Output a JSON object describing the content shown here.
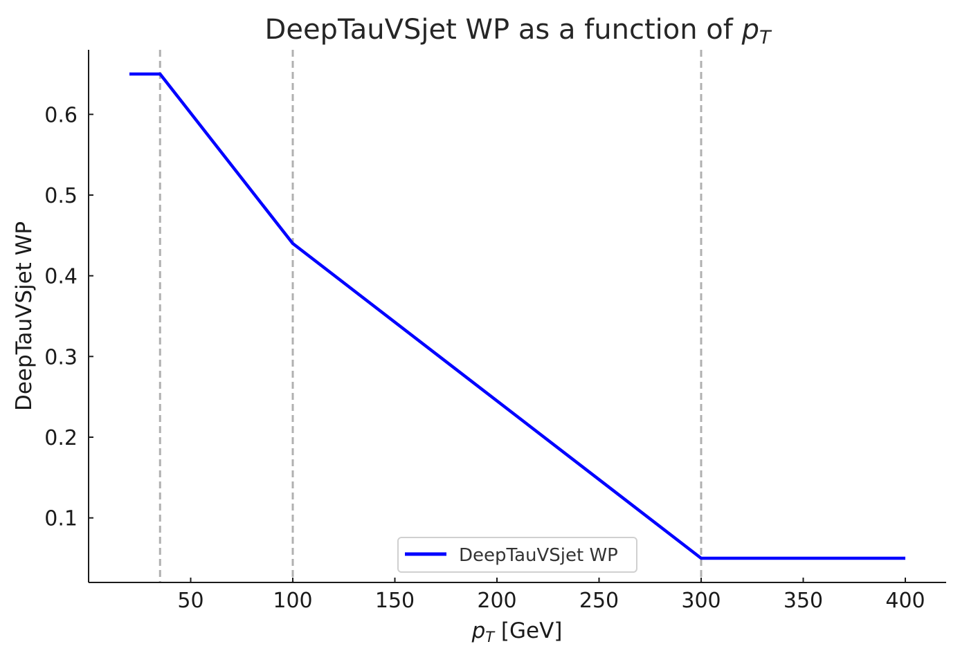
{
  "chart_data": {
    "type": "line",
    "title": {
      "prefix": "DeepTauVSjet WP as a function of ",
      "math_var": "p",
      "math_sub": "T"
    },
    "xlabel": {
      "math_var": "p",
      "math_sub": "T",
      "suffix": " [GeV]"
    },
    "ylabel": "DeepTauVSjet WP",
    "xlim": [
      0,
      420
    ],
    "ylim": [
      0.02,
      0.68
    ],
    "xticks": [
      50,
      100,
      150,
      200,
      250,
      300,
      350,
      400
    ],
    "yticks": [
      0.1,
      0.2,
      0.3,
      0.4,
      0.5,
      0.6
    ],
    "grid": false,
    "legend": {
      "position": "bottom-center"
    },
    "series": [
      {
        "name": "DeepTauVSjet WP",
        "color": "#0000ff",
        "points": [
          {
            "x": 20,
            "y": 0.65
          },
          {
            "x": 35,
            "y": 0.65
          },
          {
            "x": 100,
            "y": 0.44
          },
          {
            "x": 300,
            "y": 0.05
          },
          {
            "x": 400,
            "y": 0.05
          }
        ]
      }
    ],
    "vlines": [
      {
        "x": 35,
        "color": "#b0b0b0",
        "style": "dashed"
      },
      {
        "x": 100,
        "color": "#b0b0b0",
        "style": "dashed"
      },
      {
        "x": 300,
        "color": "#b0b0b0",
        "style": "dashed"
      }
    ]
  }
}
